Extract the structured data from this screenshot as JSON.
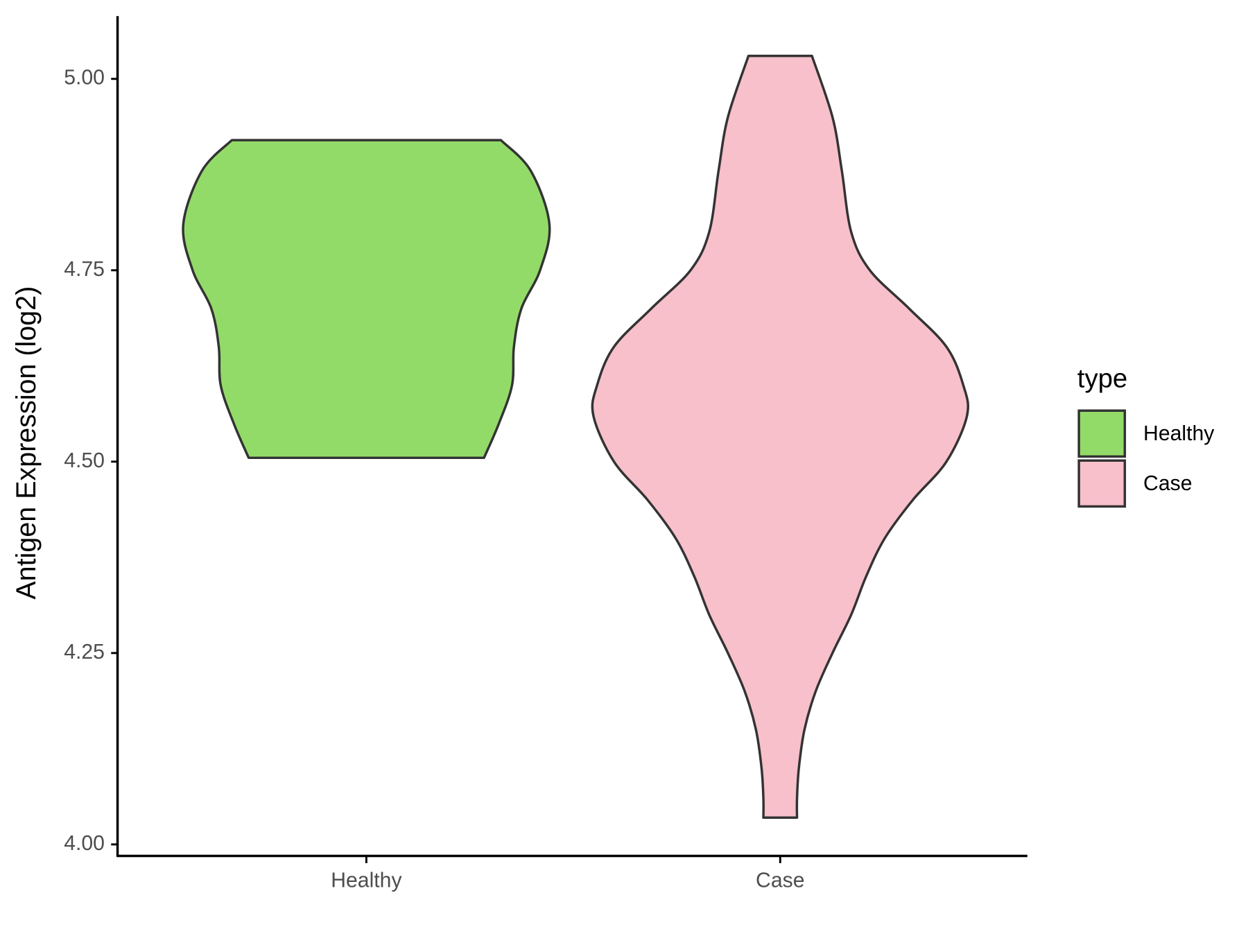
{
  "chart_data": {
    "type": "violin",
    "y_label": "Antigen Expression (log2)",
    "categories": [
      "Healthy",
      "Case"
    ],
    "legend_title": "type",
    "legend": "right",
    "ylim": [
      3.985,
      5.082
    ],
    "yticks": [
      {
        "value": 4,
        "label": "4.00"
      },
      {
        "value": 4.25,
        "label": "4.25"
      },
      {
        "value": 4.5,
        "label": "4.50"
      },
      {
        "value": 4.75,
        "label": "4.75"
      },
      {
        "value": 5,
        "label": "5.00"
      }
    ],
    "series": [
      {
        "name": "Healthy",
        "color": "#93db69",
        "y": [
          4.92,
          4.88,
          4.81,
          4.75,
          4.7,
          4.65,
          4.6,
          4.55,
          4.505
        ],
        "width": [
          0.72,
          0.88,
          0.98,
          0.93,
          0.83,
          0.79,
          0.78,
          0.71,
          0.63
        ]
      },
      {
        "name": "Case",
        "color": "#f7c0cb",
        "y": [
          5.03,
          4.95,
          4.88,
          4.8,
          4.75,
          4.7,
          4.65,
          4.6,
          4.56,
          4.5,
          4.45,
          4.4,
          4.35,
          4.3,
          4.25,
          4.2,
          4.15,
          4.1,
          4.06,
          4.035
        ],
        "width": [
          0.17,
          0.28,
          0.33,
          0.38,
          0.48,
          0.69,
          0.89,
          0.98,
          1.0,
          0.89,
          0.71,
          0.56,
          0.46,
          0.38,
          0.28,
          0.19,
          0.13,
          0.1,
          0.09,
          0.09
        ]
      }
    ]
  }
}
